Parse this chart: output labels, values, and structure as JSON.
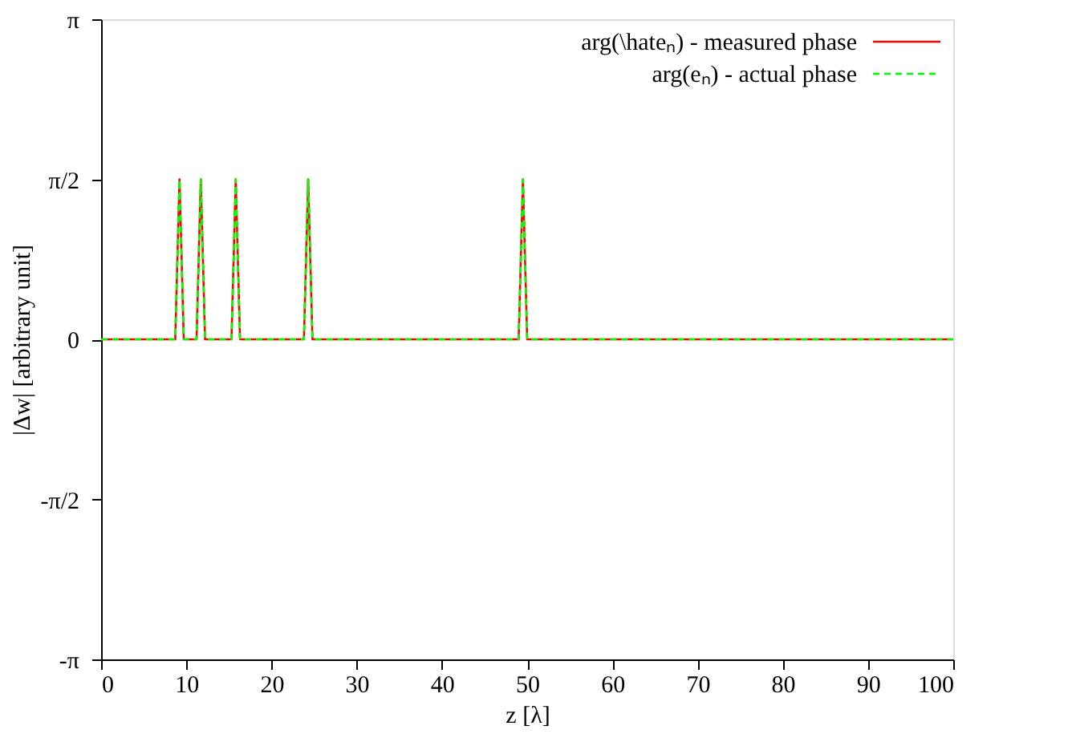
{
  "chart_data": {
    "type": "line",
    "xlabel": "z [λ]",
    "ylabel": "|Δw| [arbitrary unit]",
    "xlim": [
      0,
      100
    ],
    "xticks": [
      0,
      10,
      20,
      30,
      40,
      50,
      60,
      70,
      80,
      90,
      100
    ],
    "ylim": [
      -3.1416,
      3.1416
    ],
    "yticks": [
      {
        "value": -3.1416,
        "label": "-π"
      },
      {
        "value": -1.5708,
        "label": "-π/2"
      },
      {
        "value": 0,
        "label": "0"
      },
      {
        "value": 1.5708,
        "label": "π/2"
      },
      {
        "value": 3.1416,
        "label": "π"
      }
    ],
    "x": [
      0,
      8.7,
      9.2,
      9.7,
      11.2,
      11.7,
      12.2,
      15.3,
      15.8,
      16.3,
      23.8,
      24.3,
      24.8,
      49,
      49.5,
      50,
      100
    ],
    "series": [
      {
        "name": "arg(\\hateₙ) - measured phase",
        "color": "#ff0000",
        "line_style": "solid",
        "values": [
          0,
          0,
          1.57,
          0,
          0,
          1.57,
          0,
          0,
          1.57,
          0,
          0,
          1.57,
          0,
          0,
          1.57,
          0,
          0
        ]
      },
      {
        "name": "arg(eₙ) - actual phase",
        "color": "#00ff00",
        "line_style": "dashed",
        "values": [
          0,
          0,
          1.57,
          0,
          0,
          1.57,
          0,
          0,
          1.57,
          0,
          0,
          1.57,
          0,
          0,
          1.57,
          0,
          0
        ]
      }
    ],
    "grid": false,
    "legend": "top right",
    "marker": "none"
  }
}
